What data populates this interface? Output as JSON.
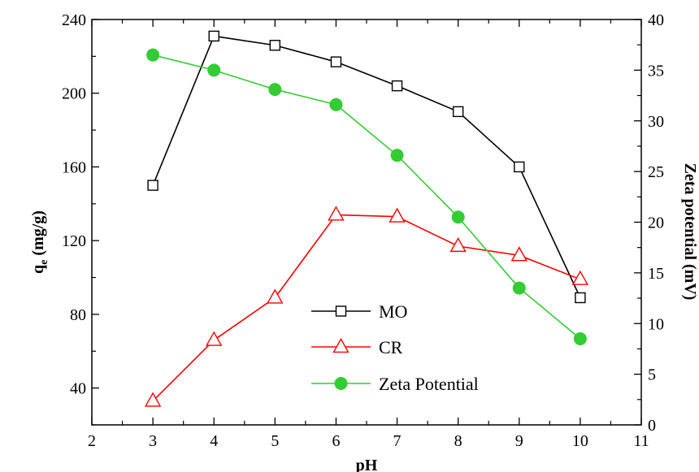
{
  "chart_data": {
    "type": "line",
    "title": "",
    "xlabel": "pH",
    "ylabel": "q",
    "ylabel_sub": "e",
    "ylabel_unit": " (mg/g)",
    "y2label": "Zeta potential (mV)",
    "xlim": [
      2,
      11
    ],
    "ylim": [
      20,
      240
    ],
    "y2lim": [
      0,
      40
    ],
    "xticks": [
      2,
      3,
      4,
      5,
      6,
      7,
      8,
      9,
      10,
      11
    ],
    "yticks": [
      40,
      80,
      120,
      160,
      200,
      240
    ],
    "y2ticks": [
      0,
      5,
      10,
      15,
      20,
      25,
      30,
      35,
      40
    ],
    "grid": false,
    "legend_position": "bottom-center",
    "x": [
      3,
      4,
      5,
      6,
      7,
      8,
      9,
      10
    ],
    "series": [
      {
        "name": "MO",
        "axis": "left",
        "marker": "square",
        "color": "#000000",
        "values": [
          150,
          231,
          226,
          217,
          204,
          190,
          160,
          89
        ]
      },
      {
        "name": "CR",
        "axis": "left",
        "marker": "triangle",
        "color": "#ff0000",
        "values": [
          33,
          66,
          89,
          134,
          133,
          117,
          112,
          99
        ]
      },
      {
        "name": "Zeta Potential",
        "axis": "right",
        "marker": "circle",
        "color": "#33cc33",
        "values": [
          36.5,
          35.0,
          33.1,
          31.6,
          26.6,
          20.5,
          13.5,
          8.5
        ]
      }
    ]
  }
}
